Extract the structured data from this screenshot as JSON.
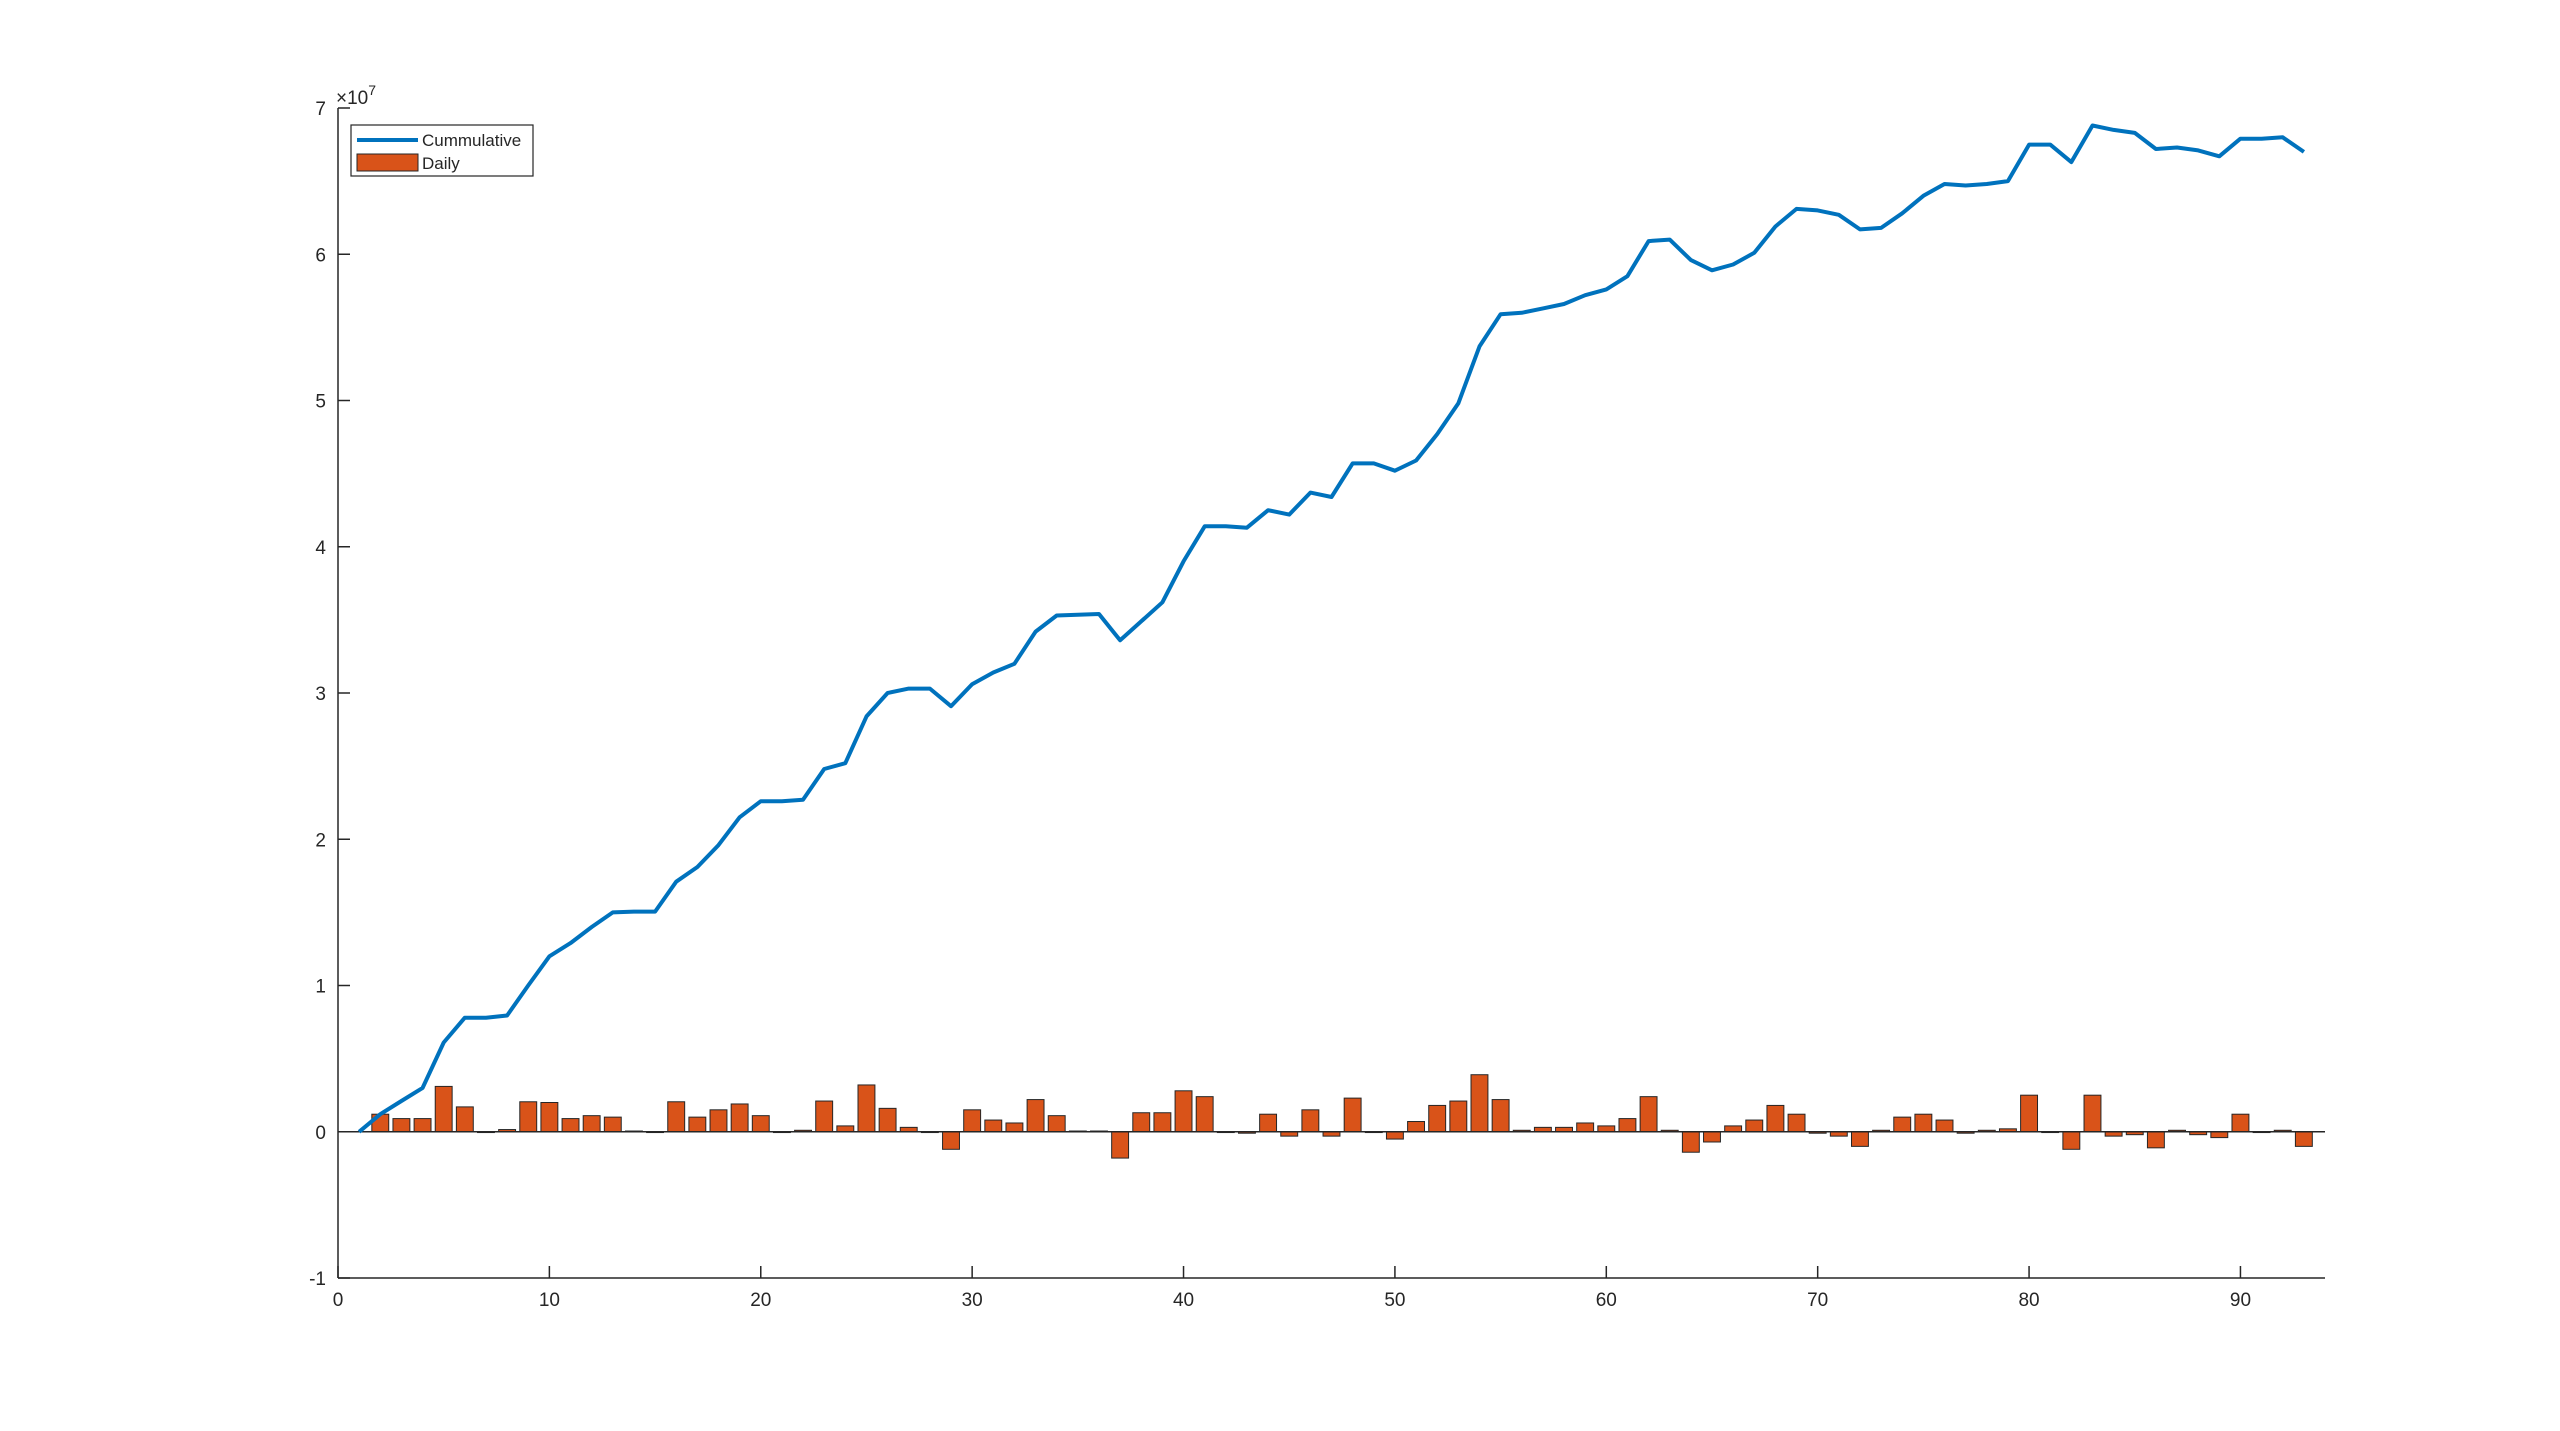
{
  "chart_data": {
    "type": "bar",
    "exponent_label": {
      "base": "×10",
      "power": "7"
    },
    "xlim": [
      0,
      94
    ],
    "ylim": [
      -10000000,
      70000000
    ],
    "xticks": [
      0,
      10,
      20,
      30,
      40,
      50,
      60,
      70,
      80,
      90
    ],
    "yticks": [
      -1,
      0,
      1,
      2,
      3,
      4,
      5,
      6,
      7
    ],
    "ytick_scale": 10000000,
    "grid": false,
    "legend_placement": "top-left",
    "colors": {
      "cumulative": "#0072BD",
      "daily": "#D95319",
      "axis": "#262626"
    },
    "series": [
      {
        "name": "Cummulative",
        "type": "line",
        "x": [
          1,
          2,
          3,
          4,
          5,
          6,
          7,
          8,
          9,
          10,
          11,
          12,
          13,
          14,
          15,
          16,
          17,
          18,
          19,
          20,
          21,
          22,
          23,
          24,
          25,
          26,
          27,
          28,
          29,
          30,
          31,
          32,
          33,
          34,
          35,
          36,
          37,
          38,
          39,
          40,
          41,
          42,
          43,
          44,
          45,
          46,
          47,
          48,
          49,
          50,
          51,
          52,
          53,
          54,
          55,
          56,
          57,
          58,
          59,
          60,
          61,
          62,
          63,
          64,
          65,
          66,
          67,
          68,
          69,
          70,
          71,
          72,
          73,
          74,
          75,
          76,
          77,
          78,
          79,
          80,
          81,
          82,
          83,
          84,
          85,
          86,
          87,
          88,
          89,
          90,
          91,
          92,
          93
        ],
        "values": [
          0,
          1200000,
          2100000,
          3000000,
          6100000,
          7800000,
          7800000,
          7950000,
          10000000,
          12000000,
          12900000,
          14000000,
          15000000,
          15050000,
          15050000,
          17100000,
          18100000,
          19600000,
          21500000,
          22600000,
          22600000,
          22700000,
          24800000,
          25200000,
          28400000,
          30000000,
          30300000,
          30300000,
          29100000,
          30600000,
          31400000,
          32000000,
          34200000,
          35300000,
          35350000,
          35400000,
          33600000,
          34900000,
          36200000,
          39000000,
          41400000,
          41400000,
          41300000,
          42500000,
          42200000,
          43700000,
          43400000,
          45700000,
          45700000,
          45200000,
          45900000,
          47700000,
          49800000,
          53700000,
          55900000,
          56000000,
          56300000,
          56600000,
          57200000,
          57600000,
          58500000,
          60900000,
          61000000,
          59600000,
          58900000,
          59300000,
          60100000,
          61900000,
          63100000,
          63000000,
          62700000,
          61700000,
          61800000,
          62800000,
          64000000,
          64800000,
          64700000,
          64800000,
          65000000,
          67500000,
          67500000,
          66300000,
          68800000,
          68500000,
          68300000,
          67200000,
          67300000,
          67100000,
          66700000,
          67900000,
          67900000,
          68000000,
          67000000
        ]
      },
      {
        "name": "Daily",
        "type": "bar",
        "x": [
          2,
          3,
          4,
          5,
          6,
          7,
          8,
          9,
          10,
          11,
          12,
          13,
          14,
          15,
          16,
          17,
          18,
          19,
          20,
          21,
          22,
          23,
          24,
          25,
          26,
          27,
          28,
          29,
          30,
          31,
          32,
          33,
          34,
          35,
          36,
          37,
          38,
          39,
          40,
          41,
          42,
          43,
          44,
          45,
          46,
          47,
          48,
          49,
          50,
          51,
          52,
          53,
          54,
          55,
          56,
          57,
          58,
          59,
          60,
          61,
          62,
          63,
          64,
          65,
          66,
          67,
          68,
          69,
          70,
          71,
          72,
          73,
          74,
          75,
          76,
          77,
          78,
          79,
          80,
          81,
          82,
          83,
          84,
          85,
          86,
          87,
          88,
          89,
          90,
          91,
          92,
          93
        ],
        "values": [
          1200000,
          900000,
          900000,
          3100000,
          1700000,
          0,
          150000,
          2050000,
          2000000,
          900000,
          1100000,
          1000000,
          50000,
          0,
          2050000,
          1000000,
          1500000,
          1900000,
          1100000,
          0,
          100000,
          2100000,
          400000,
          3200000,
          1600000,
          300000,
          0,
          -1200000,
          1500000,
          800000,
          600000,
          2200000,
          1100000,
          50000,
          50000,
          -1800000,
          1300000,
          1300000,
          2800000,
          2400000,
          0,
          -100000,
          1200000,
          -300000,
          1500000,
          -300000,
          2300000,
          0,
          -500000,
          700000,
          1800000,
          2100000,
          3900000,
          2200000,
          100000,
          300000,
          300000,
          600000,
          400000,
          900000,
          2400000,
          100000,
          -1400000,
          -700000,
          400000,
          800000,
          1800000,
          1200000,
          -100000,
          -300000,
          -1000000,
          100000,
          1000000,
          1200000,
          800000,
          -100000,
          100000,
          200000,
          2500000,
          0,
          -1200000,
          2500000,
          -300000,
          -200000,
          -1100000,
          100000,
          -200000,
          -400000,
          1200000,
          0,
          100000,
          -1000000
        ]
      }
    ]
  }
}
